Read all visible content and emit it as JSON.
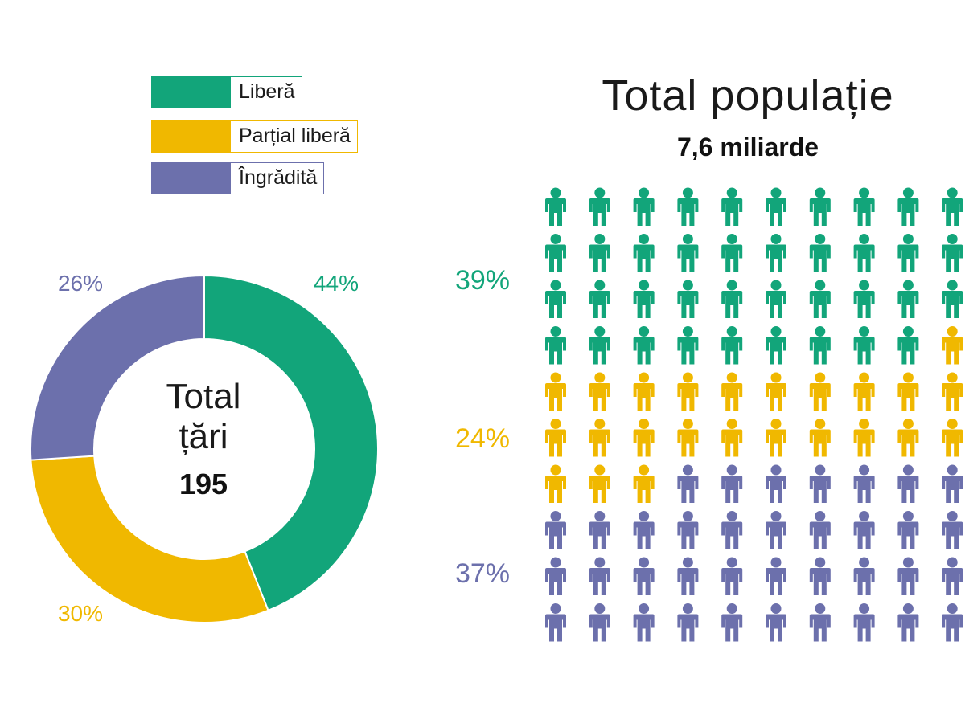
{
  "colors": {
    "libera": "#12a57a",
    "partial": "#f0b800",
    "ingradita": "#6c70ac"
  },
  "legend": [
    {
      "label": "Liberă",
      "color_key": "libera"
    },
    {
      "label": "Parțial liberă",
      "color_key": "partial"
    },
    {
      "label": "Îngrădită",
      "color_key": "ingradita"
    }
  ],
  "chart_data": [
    {
      "type": "pie",
      "center_text": [
        "Total",
        "țări"
      ],
      "center_value": "195",
      "slices": [
        {
          "label": "44%",
          "value": 44,
          "color_key": "libera"
        },
        {
          "label": "30%",
          "value": 30,
          "color_key": "partial"
        },
        {
          "label": "26%",
          "value": 26,
          "color_key": "ingradita"
        }
      ]
    },
    {
      "type": "table",
      "title": "Total populație",
      "subtitle": "7,6 miliarde",
      "rows": 10,
      "visible_columns": 10,
      "groups": [
        {
          "label": "39%",
          "value": 39,
          "color_key": "libera"
        },
        {
          "label": "24%",
          "value": 24,
          "color_key": "partial"
        },
        {
          "label": "37%",
          "value": 37,
          "color_key": "ingradita"
        }
      ]
    }
  ]
}
